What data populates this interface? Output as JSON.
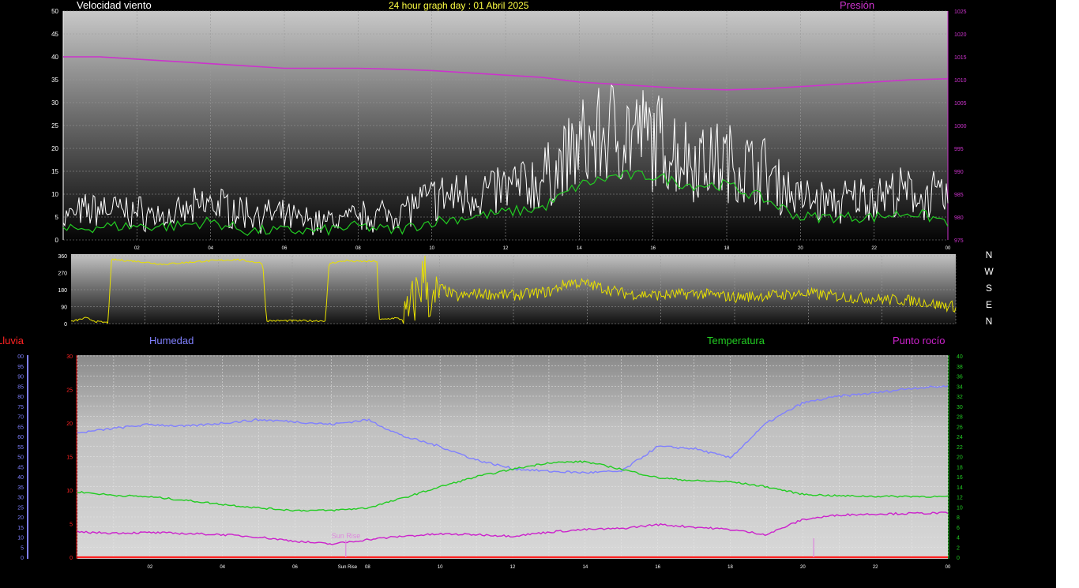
{
  "colors": {
    "wind_speed": "#ffffff",
    "wind_avg": "#22cc22",
    "pressure": "#cc33cc",
    "direction": "#e8e000",
    "humidity": "#8080ff",
    "temperature": "#22cc22",
    "dewpoint": "#cc22cc",
    "rain": "#ff2222",
    "sunrise": "#dd88dd"
  },
  "header": {
    "title": "24 hour graph day : 01 Abril 2025"
  },
  "wind_panel": {
    "series_label": "Velocidad viento",
    "pressure_label": "Presión"
  },
  "direction_panel": {
    "compass": [
      "N",
      "W",
      "S",
      "E",
      "N"
    ]
  },
  "climate_panel": {
    "rain_label": "Lluvia",
    "humidity_label": "Humedad",
    "temperature_label": "Temperatura",
    "dewpoint_label": "Punto rocío",
    "sunrise_label": "Sun Rise",
    "sunrise_tick_label": "Sun Rise"
  },
  "chart_data": [
    {
      "type": "line",
      "name": "wind",
      "x_ticks": [
        "02",
        "04",
        "06",
        "08",
        "10",
        "12",
        "14",
        "16",
        "18",
        "20",
        "22",
        "00"
      ],
      "y_left_ticks": [
        "0",
        "5",
        "10",
        "15",
        "20",
        "25",
        "30",
        "35",
        "40",
        "45",
        "50"
      ],
      "y_right_ticks": [
        "975",
        "980",
        "985",
        "990",
        "995",
        "1000",
        "1005",
        "1010",
        "1015",
        "1020",
        "1025"
      ],
      "ylim": [
        0,
        50
      ],
      "y2lim": [
        975,
        1025
      ],
      "x_hours": [
        0,
        1,
        2,
        3,
        4,
        5,
        6,
        7,
        8,
        9,
        10,
        11,
        12,
        13,
        14,
        15,
        16,
        17,
        18,
        19,
        20,
        21,
        22,
        23,
        24
      ],
      "gust_speed": [
        5,
        7,
        6,
        5,
        8,
        6,
        5,
        4,
        5,
        6,
        9,
        10,
        11,
        13,
        20,
        24,
        22,
        18,
        17,
        15,
        9,
        8,
        10,
        10,
        9
      ],
      "avg_speed": [
        2,
        3,
        3,
        3,
        4,
        2,
        2,
        2,
        3,
        2,
        4,
        5,
        6,
        7,
        12,
        14,
        14,
        12,
        12,
        9,
        5,
        5,
        5,
        6,
        4
      ],
      "pressure": [
        1015,
        1015,
        1014.5,
        1014,
        1013.5,
        1013,
        1012.5,
        1012.5,
        1012.5,
        1012.3,
        1012,
        1011.5,
        1011,
        1010.5,
        1009.5,
        1009,
        1008.5,
        1008,
        1007.8,
        1008,
        1008.5,
        1009,
        1009.5,
        1010,
        1010.2
      ]
    },
    {
      "type": "line",
      "name": "wind_direction",
      "x_ticks": [],
      "y_ticks": [
        "0",
        "90",
        "180",
        "270",
        "360"
      ],
      "ylim": [
        0,
        360
      ],
      "x_hours": [
        0,
        0.4,
        0.7,
        1.0,
        1.1,
        1.8,
        2.5,
        3.5,
        4.5,
        5.2,
        5.3,
        6.9,
        7.0,
        7.5,
        7.6,
        8.3,
        8.35,
        8.8,
        9.0,
        9.1,
        9.3,
        9.6,
        9.8,
        10.0,
        10.5,
        11,
        12,
        13,
        13.5,
        14,
        15,
        16,
        17,
        18,
        19,
        20,
        21,
        22,
        23,
        23.5,
        24
      ],
      "values": [
        10,
        30,
        10,
        5,
        340,
        330,
        315,
        330,
        340,
        320,
        15,
        15,
        320,
        335,
        330,
        330,
        20,
        30,
        20,
        10,
        120,
        270,
        60,
        190,
        140,
        160,
        150,
        170,
        220,
        210,
        160,
        150,
        160,
        140,
        150,
        160,
        140,
        130,
        120,
        100,
        90
      ]
    },
    {
      "type": "line",
      "name": "climate",
      "x_ticks": [
        "02",
        "04",
        "06",
        "08",
        "10",
        "12",
        "14",
        "16",
        "18",
        "20",
        "22",
        "00"
      ],
      "y_rain_ticks": [
        "0",
        "5",
        "10",
        "15",
        "20",
        "25",
        "30",
        "35",
        "40",
        "45",
        "50",
        "55",
        "60",
        "65",
        "70",
        "75",
        "80",
        "85",
        "90",
        "95",
        "00"
      ],
      "y_left_ticks": [
        "0",
        "5",
        "10",
        "15",
        "20",
        "25",
        "30"
      ],
      "y_right_ticks": [
        "0",
        "2",
        "4",
        "6",
        "8",
        "10",
        "12",
        "14",
        "16",
        "18",
        "20",
        "22",
        "24",
        "26",
        "28",
        "30",
        "32",
        "34",
        "36",
        "38",
        "40"
      ],
      "ylim_left": [
        0,
        30
      ],
      "ylim_right": [
        0,
        40
      ],
      "x_hours": [
        0,
        1,
        2,
        3,
        4,
        5,
        6,
        7,
        8,
        9,
        10,
        11,
        12,
        13,
        14,
        15,
        16,
        17,
        18,
        19,
        20,
        21,
        22,
        23,
        24
      ],
      "humidity_left_units": [
        18.5,
        19.2,
        19.8,
        19.5,
        20,
        20.5,
        20.2,
        19.8,
        20.5,
        18,
        16.5,
        14.5,
        13.2,
        12.8,
        12.6,
        12.8,
        16.5,
        16.2,
        14.8,
        20,
        23,
        24,
        24.5,
        25.2,
        25.5
      ],
      "temperature_c": [
        13,
        12.3,
        12,
        11.3,
        10.5,
        9.8,
        9.3,
        9.3,
        9.8,
        11.8,
        14,
        16,
        17.5,
        18.8,
        19,
        17.5,
        15.8,
        15.2,
        15,
        14,
        12.5,
        12.2,
        12.1,
        12.1,
        12
      ],
      "dewpoint_c": [
        5,
        4.8,
        4.9,
        4.7,
        4.5,
        4,
        3.2,
        2.6,
        3.5,
        4.2,
        4.6,
        4.5,
        4.2,
        5,
        5.5,
        5.7,
        6.5,
        6,
        5.5,
        4.5,
        7.5,
        8.4,
        8.6,
        8.7,
        8.8
      ],
      "rain": 0,
      "sunrise_hour": 7.4
    }
  ]
}
